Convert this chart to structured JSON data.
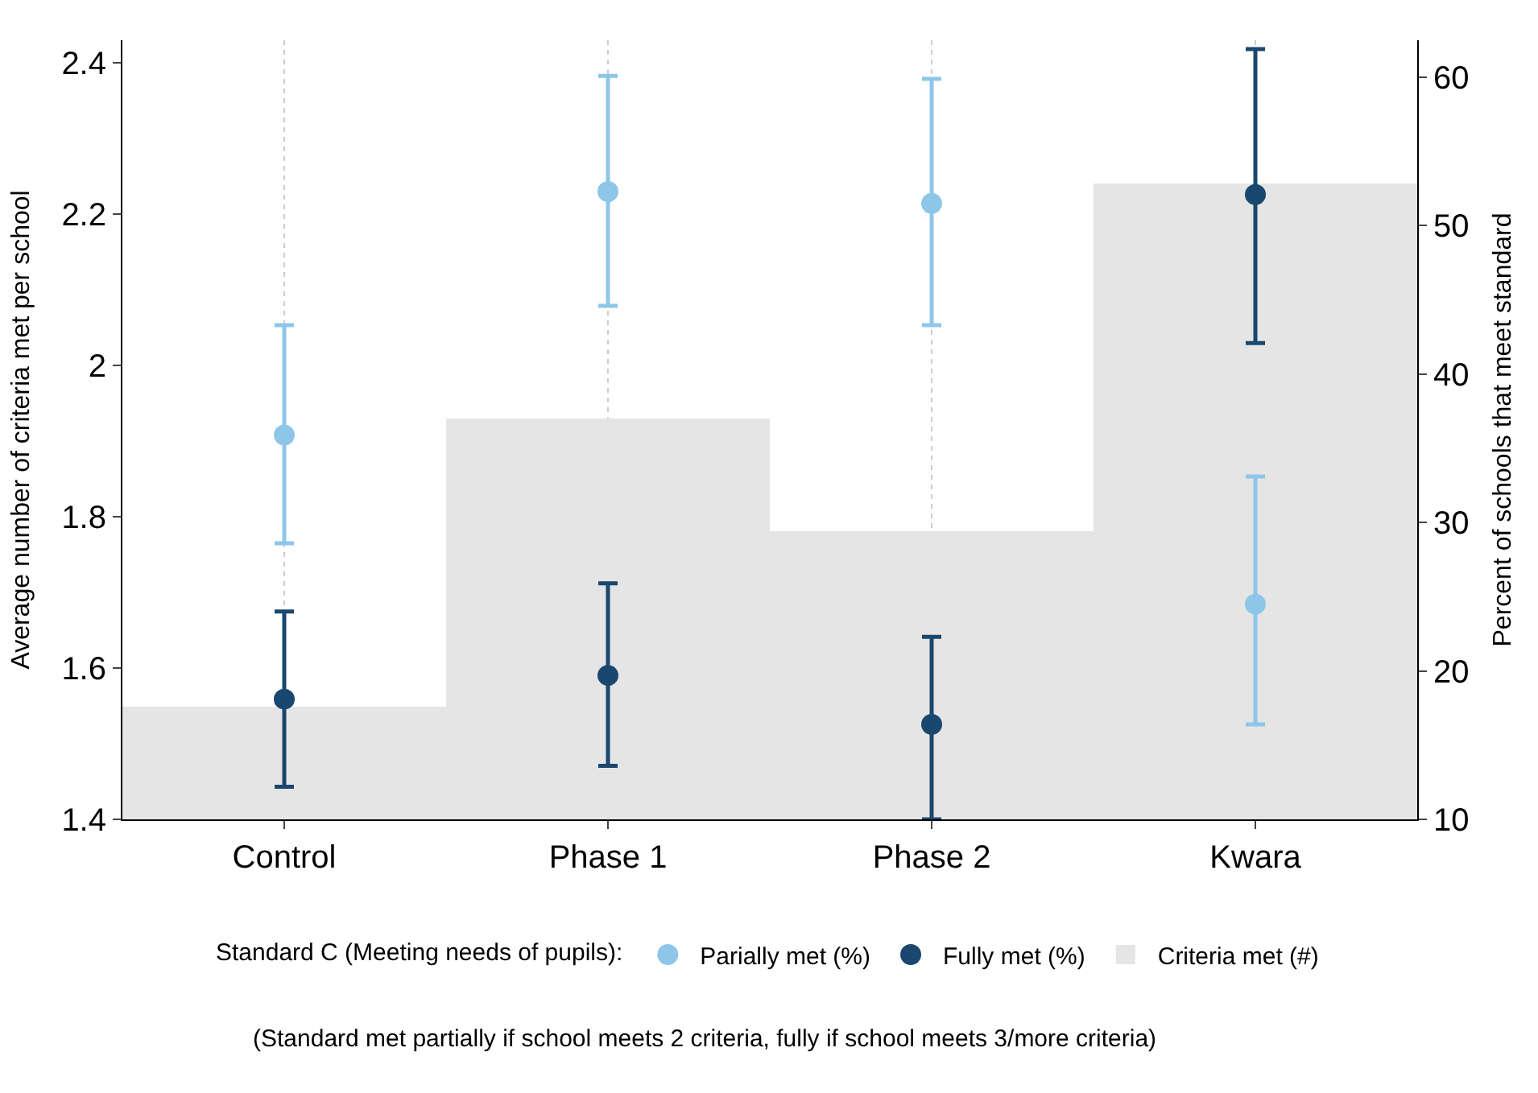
{
  "chart_data": {
    "type": "bar",
    "categories": [
      "Control",
      "Phase 1",
      "Phase 2",
      "Kwara"
    ],
    "ylabel": "Average number of criteria met per school",
    "y2label": "Percent of schools that meet standard",
    "legend_title": "Standard C (Meeting needs of pupils):",
    "legend": "bottom",
    "grid": "x",
    "marker": "circle",
    "ylim": [
      1.4,
      2.43
    ],
    "yticks": [
      1.4,
      1.6,
      1.8,
      2,
      2.2,
      2.4
    ],
    "y2lim": [
      10,
      62.5
    ],
    "y2ticks": [
      10,
      20,
      30,
      40,
      50,
      60
    ],
    "series": [
      {
        "name": "Parially met (%)",
        "type": "scatter",
        "axis": "y2",
        "color": "#8ec6ea",
        "values": [
          35.9,
          52.3,
          51.5,
          24.5
        ],
        "errors": [
          [
            28.6,
            43.3
          ],
          [
            44.6,
            60.1
          ],
          [
            43.3,
            59.9
          ],
          [
            16.4,
            33.1
          ]
        ]
      },
      {
        "name": "Fully met (%)",
        "type": "scatter",
        "axis": "y2",
        "color": "#1a476f",
        "values": [
          18.1,
          19.7,
          16.4,
          52.1
        ],
        "errors": [
          [
            12.2,
            24.0
          ],
          [
            13.6,
            25.9
          ],
          [
            10,
            22.3
          ],
          [
            42.1,
            61.9
          ]
        ]
      },
      {
        "name": "Criteria met (#)",
        "color": "#e5e5e5",
        "values": [
          1.55,
          1.93,
          1.78,
          2.24
        ]
      }
    ],
    "annotations": [
      "(Standard met partially if school meets 2 criteria, fully if school meets 3/more criteria)"
    ]
  }
}
